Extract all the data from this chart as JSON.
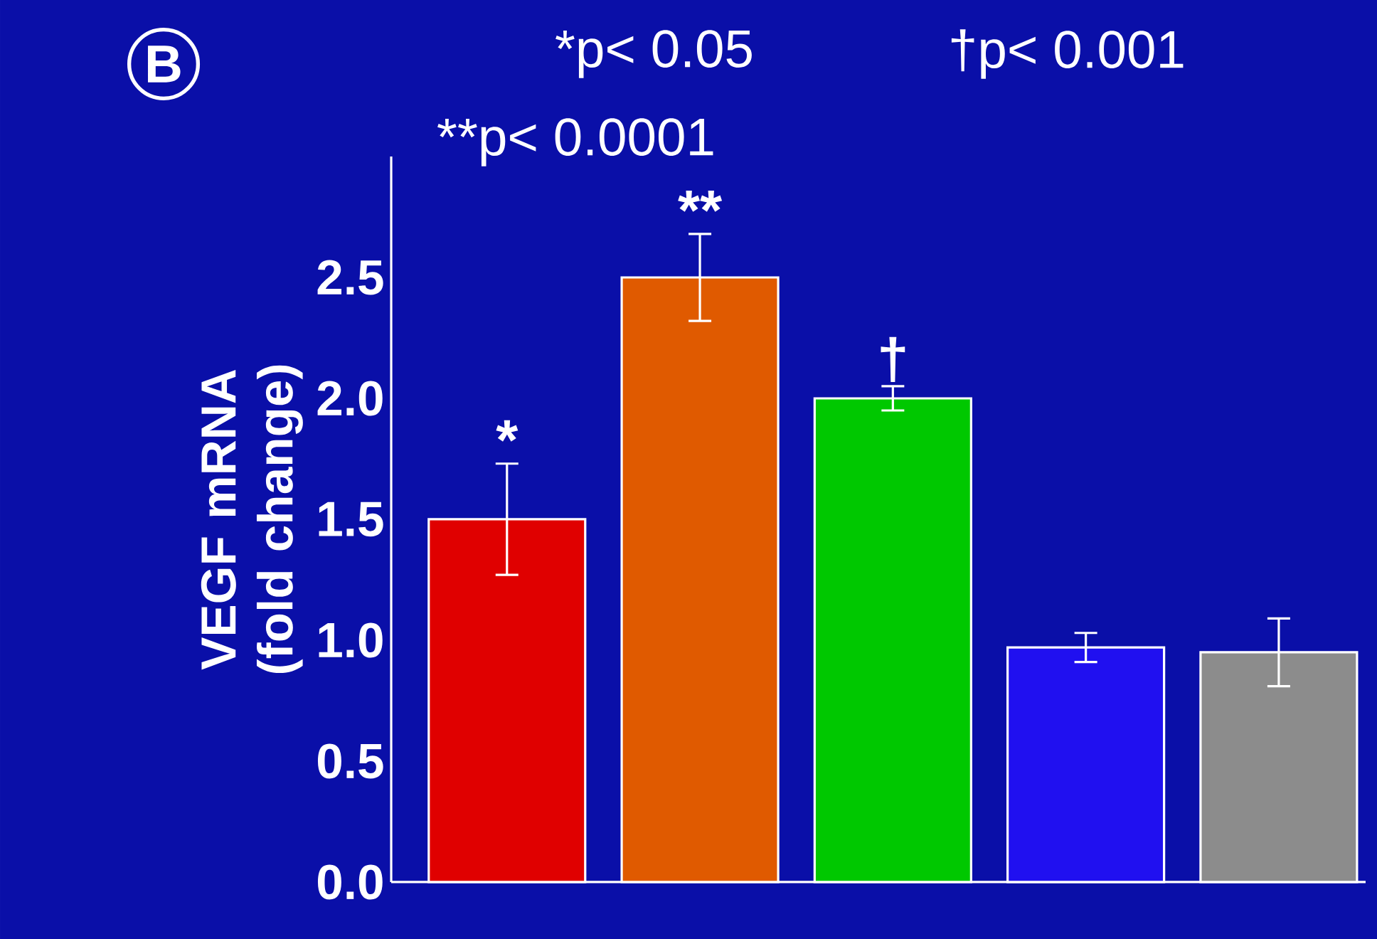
{
  "chart_data": {
    "type": "bar",
    "ylabel": "VEGF mRNA (fold change)",
    "annotations": [
      "B",
      "*p< 0.05",
      "†p< 0.001",
      "**p< 0.0001"
    ],
    "categories": [
      null,
      null,
      null,
      null,
      null
    ],
    "values": [
      1.5,
      2.5,
      2.0,
      0.97,
      0.95
    ],
    "colors": [
      "#e00000",
      "#e05a00",
      "#00c800",
      "#2010f0",
      "#8c8c8c"
    ],
    "errors": [
      0.23,
      0.18,
      0.05,
      0.06,
      0.14
    ],
    "value_labels": [
      "*",
      "**",
      "†",
      null,
      null
    ],
    "ylim": [
      0,
      3.0
    ],
    "yticks": [
      {
        "value": 0,
        "label": "0.0"
      },
      {
        "value": 0.5,
        "label": "0.5"
      },
      {
        "value": 1.0,
        "label": "1.0"
      },
      {
        "value": 1.5,
        "label": "1.5"
      },
      {
        "value": 2.0,
        "label": "2.0"
      },
      {
        "value": 2.5,
        "label": "2.5"
      }
    ],
    "tick_labels": "y"
  }
}
